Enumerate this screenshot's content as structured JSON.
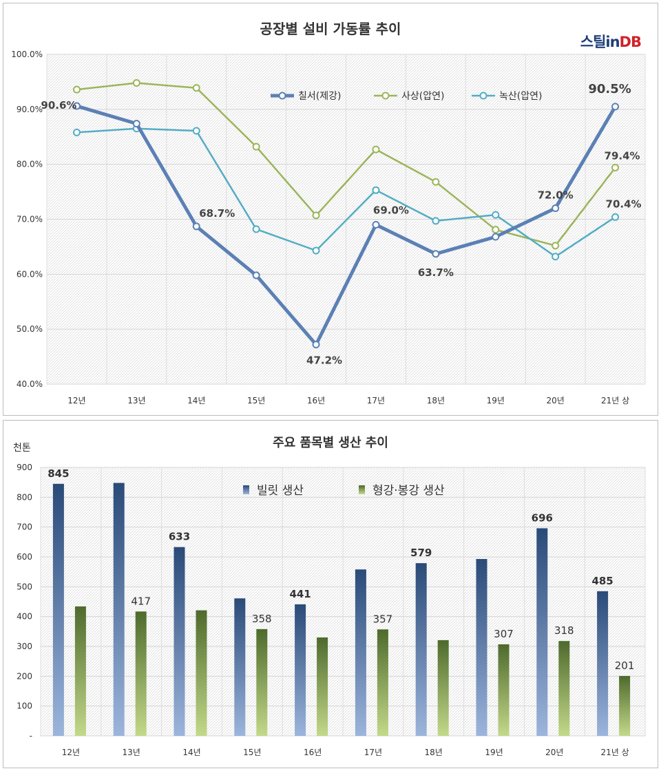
{
  "brand": {
    "part1": "스틸",
    "part2": "in",
    "part3": "DB"
  },
  "colors": {
    "chilseo": "#5b80b5",
    "sasang": "#9bb55a",
    "noksan": "#52acc4",
    "billet_top": "#2a4a78",
    "billet_bottom": "#9cb5dc",
    "section_top": "#4e6a2c",
    "section_bottom": "#c3d98a"
  },
  "chart_data": [
    {
      "type": "line",
      "title": "공장별 설비 가동률 추이",
      "categories": [
        "12년",
        "13년",
        "14년",
        "15년",
        "16년",
        "17년",
        "18년",
        "19년",
        "20년",
        "21년 상"
      ],
      "ylim": [
        40,
        100
      ],
      "yticks": [
        "40.0%",
        "50.0%",
        "60.0%",
        "70.0%",
        "80.0%",
        "90.0%",
        "100.0%"
      ],
      "grid": true,
      "legend_position": "top-right",
      "series": [
        {
          "name": "칠서(제강)",
          "values": [
            90.6,
            87.4,
            68.7,
            59.8,
            47.2,
            69.0,
            63.7,
            66.8,
            72.0,
            90.5
          ]
        },
        {
          "name": "사상(압연)",
          "values": [
            93.6,
            94.8,
            93.9,
            83.2,
            70.7,
            82.7,
            76.8,
            68.1,
            65.2,
            79.4
          ]
        },
        {
          "name": "녹산(압연)",
          "values": [
            85.8,
            86.5,
            86.1,
            68.2,
            64.3,
            75.3,
            69.7,
            70.8,
            63.2,
            70.4
          ]
        }
      ],
      "annotations": [
        {
          "series": 0,
          "index": 0,
          "text": "90.6%"
        },
        {
          "series": 0,
          "index": 2,
          "text": "68.7%"
        },
        {
          "series": 0,
          "index": 4,
          "text": "47.2%"
        },
        {
          "series": 0,
          "index": 5,
          "text": "69.0%"
        },
        {
          "series": 0,
          "index": 6,
          "text": "63.7%"
        },
        {
          "series": 0,
          "index": 8,
          "text": "72.0%"
        },
        {
          "series": 0,
          "index": 9,
          "text": "90.5%"
        },
        {
          "series": 1,
          "index": 9,
          "text": "79.4%"
        },
        {
          "series": 2,
          "index": 9,
          "text": "70.4%"
        }
      ]
    },
    {
      "type": "bar",
      "title": "주요 품목별 생산 추이",
      "ylabel": "천톤",
      "categories": [
        "12년",
        "13년",
        "14년",
        "15년",
        "16년",
        "17년",
        "18년",
        "19년",
        "20년",
        "21년 상"
      ],
      "ylim": [
        0,
        900
      ],
      "yticks": [
        "-",
        "100",
        "200",
        "300",
        "400",
        "500",
        "600",
        "700",
        "800",
        "900"
      ],
      "grid": true,
      "legend_position": "top-center",
      "series": [
        {
          "name": "빌릿 생산",
          "values": [
            845,
            848,
            633,
            461,
            441,
            558,
            579,
            593,
            696,
            485
          ]
        },
        {
          "name": "형강·봉강 생산",
          "values": [
            434,
            417,
            421,
            358,
            330,
            357,
            321,
            307,
            318,
            201
          ]
        }
      ],
      "annotations": [
        {
          "series": 0,
          "index": 0,
          "text": "845"
        },
        {
          "series": 0,
          "index": 2,
          "text": "633"
        },
        {
          "series": 0,
          "index": 4,
          "text": "441"
        },
        {
          "series": 0,
          "index": 6,
          "text": "579"
        },
        {
          "series": 0,
          "index": 8,
          "text": "696"
        },
        {
          "series": 0,
          "index": 9,
          "text": "485"
        },
        {
          "series": 1,
          "index": 1,
          "text": "417"
        },
        {
          "series": 1,
          "index": 3,
          "text": "358"
        },
        {
          "series": 1,
          "index": 5,
          "text": "357"
        },
        {
          "series": 1,
          "index": 7,
          "text": "307"
        },
        {
          "series": 1,
          "index": 8,
          "text": "318"
        },
        {
          "series": 1,
          "index": 9,
          "text": "201"
        }
      ]
    }
  ]
}
